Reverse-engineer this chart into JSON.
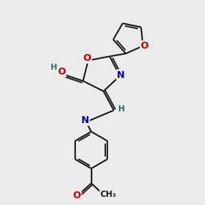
{
  "bg_color": "#ebebeb",
  "bond_color": "#1a1a1a",
  "bond_width": 1.6,
  "atom_colors": {
    "O": "#cc0000",
    "N": "#0000bb",
    "H": "#2d7070",
    "C": "#1a1a1a"
  },
  "font_size_atom": 10,
  "font_size_h": 8.5
}
